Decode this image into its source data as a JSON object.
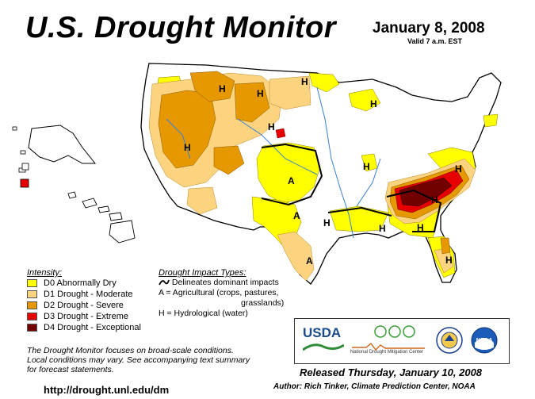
{
  "header": {
    "title": "U.S. Drought Monitor",
    "date": "January 8, 2008",
    "valid": "Valid 7 a.m. EST"
  },
  "legend": {
    "heading": "Intensity:",
    "items": [
      {
        "label": "D0 Abnormally Dry",
        "color": "#ffff00"
      },
      {
        "label": "D1 Drought - Moderate",
        "color": "#fcd37f"
      },
      {
        "label": "D2 Drought - Severe",
        "color": "#e69800"
      },
      {
        "label": "D3 Drought - Extreme",
        "color": "#e60000"
      },
      {
        "label": "D4 Drought - Exceptional",
        "color": "#730000"
      }
    ]
  },
  "impact": {
    "heading": "Drought Impact Types:",
    "lines": [
      "Delineates dominant impacts",
      "A = Agricultural (crops, pastures,",
      "grasslands)",
      "H = Hydrological (water)"
    ]
  },
  "map_labels": [
    "H",
    "H",
    "H",
    "H",
    "H",
    "A",
    "H",
    "A",
    "H",
    "H",
    "H",
    "A",
    "H",
    "H",
    "H",
    "H"
  ],
  "note": [
    "The Drought Monitor focuses on broad-scale conditions.",
    "Local conditions may vary. See accompanying text summary",
    "for forecast statements."
  ],
  "url": "http://drought.unl.edu/dm",
  "released": "Released Thursday, January 10, 2008",
  "author": "Author: Rich Tinker, Climate Prediction Center, NOAA",
  "logos": {
    "usda": "USDA",
    "ndmc_line1": "National",
    "ndmc_line2": "Drought Mitigation Center",
    "noaa": "NOAA"
  }
}
